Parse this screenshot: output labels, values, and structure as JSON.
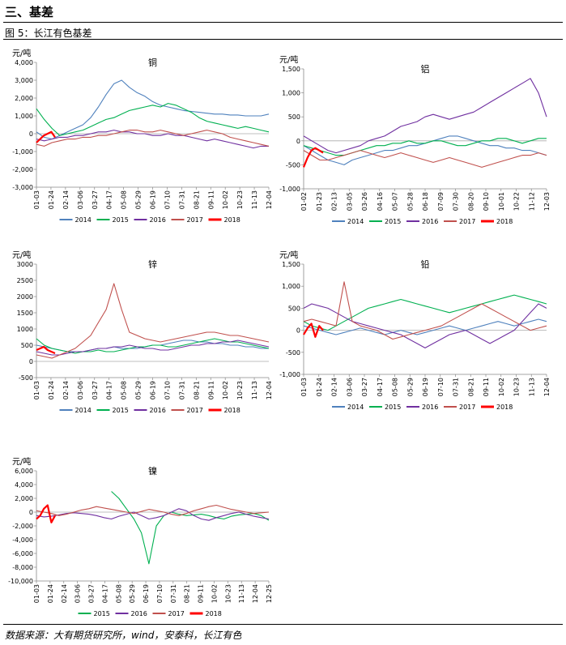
{
  "header": {
    "section_title": "三、基差",
    "figure_caption": "图 5：长江有色基差",
    "source": "数据来源：大有期货研究所，wind，安泰科，长江有色"
  },
  "colors": {
    "2014": "#4f81bd",
    "2015": "#00b050",
    "2016": "#7030a0",
    "2017": "#c0504d",
    "2018": "#ff0000"
  },
  "chart_data": [
    {
      "type": "line",
      "title": "铜",
      "ylabel": "元/吨",
      "ylim": [
        -3000,
        4000
      ],
      "yticks": [
        "-3,000",
        "-2,000",
        "-1,000",
        "0",
        "1,000",
        "2,000",
        "3,000",
        "4,000"
      ],
      "xticks": [
        "01-03",
        "01-24",
        "02-14",
        "03-06",
        "03-27",
        "04-17",
        "05-08",
        "05-29",
        "06-19",
        "07-10",
        "07-31",
        "08-21",
        "09-11",
        "10-02",
        "10-23",
        "11-13",
        "12-04"
      ],
      "series": [
        {
          "name": "2014",
          "color": "#4f81bd",
          "values": [
            100,
            -200,
            -300,
            -100,
            100,
            300,
            500,
            900,
            1500,
            2200,
            2800,
            3000,
            2600,
            2300,
            2100,
            1800,
            1600,
            1500,
            1400,
            1300,
            1250,
            1200,
            1150,
            1100,
            1100,
            1050,
            1050,
            1000,
            1000,
            1000,
            1100
          ]
        },
        {
          "name": "2015",
          "color": "#00b050",
          "values": [
            1400,
            800,
            300,
            -100,
            0,
            100,
            200,
            400,
            600,
            800,
            900,
            1100,
            1300,
            1400,
            1500,
            1600,
            1500,
            1700,
            1600,
            1400,
            1200,
            900,
            700,
            600,
            500,
            400,
            300,
            400,
            300,
            200,
            100
          ]
        },
        {
          "name": "2016",
          "color": "#7030a0",
          "values": [
            -300,
            -400,
            -300,
            -200,
            -200,
            -100,
            -100,
            0,
            100,
            100,
            200,
            100,
            100,
            0,
            0,
            -100,
            -100,
            0,
            -100,
            -100,
            -200,
            -300,
            -400,
            -300,
            -400,
            -500,
            -600,
            -700,
            -800,
            -700,
            -700
          ]
        },
        {
          "name": "2017",
          "color": "#c0504d",
          "values": [
            -600,
            -700,
            -500,
            -400,
            -300,
            -300,
            -200,
            -200,
            -100,
            -100,
            0,
            100,
            200,
            200,
            100,
            100,
            200,
            100,
            0,
            -100,
            0,
            100,
            200,
            100,
            0,
            -200,
            -300,
            -400,
            -500,
            -600,
            -700
          ]
        },
        {
          "name": "2018",
          "color": "#ff0000",
          "values": [
            -500,
            -300,
            -100,
            0,
            100,
            -200
          ]
        }
      ]
    },
    {
      "type": "line",
      "title": "铝",
      "ylabel": "元/吨",
      "ylim": [
        -1000,
        1500
      ],
      "yticks": [
        "-1,000",
        "-500",
        "0",
        "500",
        "1,000",
        "1,500"
      ],
      "xticks": [
        "01-02",
        "01-23",
        "02-13",
        "03-05",
        "03-26",
        "04-16",
        "05-07",
        "05-28",
        "06-18",
        "07-09",
        "07-30",
        "08-20",
        "09-10",
        "10-01",
        "10-22",
        "11-12",
        "12-03"
      ],
      "series": [
        {
          "name": "2014",
          "color": "#4f81bd",
          "values": [
            -100,
            -200,
            -300,
            -400,
            -450,
            -500,
            -400,
            -350,
            -300,
            -250,
            -200,
            -200,
            -150,
            -100,
            -100,
            -50,
            0,
            50,
            100,
            100,
            50,
            0,
            -50,
            -100,
            -100,
            -150,
            -150,
            -200,
            -200,
            -250,
            -300
          ]
        },
        {
          "name": "2015",
          "color": "#00b050",
          "values": [
            -100,
            -150,
            -200,
            -250,
            -300,
            -300,
            -250,
            -200,
            -150,
            -100,
            -100,
            -50,
            -50,
            0,
            -50,
            -50,
            0,
            0,
            -50,
            -100,
            -100,
            -50,
            0,
            0,
            50,
            50,
            0,
            -50,
            0,
            50,
            50
          ]
        },
        {
          "name": "2016",
          "color": "#7030a0",
          "values": [
            100,
            0,
            -100,
            -200,
            -250,
            -200,
            -150,
            -100,
            0,
            50,
            100,
            200,
            300,
            350,
            400,
            500,
            550,
            500,
            450,
            500,
            550,
            600,
            700,
            800,
            900,
            1000,
            1100,
            1200,
            1300,
            1000,
            500
          ]
        },
        {
          "name": "2017",
          "color": "#c0504d",
          "values": [
            -200,
            -300,
            -400,
            -400,
            -350,
            -300,
            -250,
            -200,
            -250,
            -300,
            -350,
            -300,
            -250,
            -300,
            -350,
            -400,
            -450,
            -400,
            -350,
            -400,
            -450,
            -500,
            -550,
            -500,
            -450,
            -400,
            -350,
            -300,
            -300,
            -250,
            -300
          ]
        },
        {
          "name": "2018",
          "color": "#ff0000",
          "values": [
            -550,
            -350,
            -200,
            -150,
            -200,
            -250
          ]
        }
      ]
    },
    {
      "type": "line",
      "title": "锌",
      "ylabel": "元/吨",
      "ylim": [
        -500,
        3000
      ],
      "yticks": [
        "-500",
        "0",
        "500",
        "1000",
        "1500",
        "2000",
        "2500",
        "3000"
      ],
      "xticks": [
        "01-03",
        "01-24",
        "02-14",
        "03-06",
        "03-27",
        "04-17",
        "05-08",
        "05-29",
        "06-19",
        "07-10",
        "07-31",
        "08-21",
        "09-11",
        "10-02",
        "10-23",
        "11-13",
        "12-04"
      ],
      "series": [
        {
          "name": "2014",
          "color": "#4f81bd",
          "values": [
            500,
            450,
            400,
            350,
            300,
            300,
            300,
            350,
            400,
            400,
            450,
            400,
            400,
            400,
            450,
            500,
            500,
            550,
            600,
            650,
            650,
            600,
            600,
            550,
            550,
            500,
            500,
            450,
            450,
            400,
            400
          ]
        },
        {
          "name": "2015",
          "color": "#00b050",
          "values": [
            700,
            500,
            400,
            350,
            300,
            250,
            300,
            300,
            350,
            300,
            300,
            350,
            400,
            450,
            450,
            500,
            500,
            450,
            450,
            500,
            550,
            600,
            650,
            700,
            650,
            600,
            600,
            550,
            500,
            450,
            400
          ]
        },
        {
          "name": "2016",
          "color": "#7030a0",
          "values": [
            300,
            250,
            200,
            200,
            250,
            300,
            300,
            350,
            400,
            400,
            450,
            450,
            500,
            450,
            400,
            400,
            350,
            350,
            400,
            450,
            500,
            500,
            550,
            550,
            600,
            600,
            650,
            600,
            550,
            500,
            450
          ]
        },
        {
          "name": "2017",
          "color": "#c0504d",
          "values": [
            200,
            150,
            100,
            200,
            300,
            400,
            600,
            800,
            1200,
            1600,
            2400,
            1600,
            900,
            800,
            700,
            650,
            600,
            650,
            700,
            750,
            800,
            850,
            900,
            900,
            850,
            800,
            800,
            750,
            700,
            650,
            600
          ]
        },
        {
          "name": "2018",
          "color": "#ff0000",
          "values": [
            350,
            400,
            450,
            350,
            300,
            250
          ]
        }
      ]
    },
    {
      "type": "line",
      "title": "铅",
      "ylabel": "元/吨",
      "ylim": [
        -1000,
        1500
      ],
      "yticks": [
        "-1,000",
        "-500",
        "0",
        "500",
        "1,000",
        "1,500"
      ],
      "xticks": [
        "01-03",
        "01-24",
        "02-14",
        "03-06",
        "03-27",
        "04-17",
        "05-08",
        "05-29",
        "06-19",
        "07-10",
        "07-31",
        "08-21",
        "09-11",
        "10-02",
        "10-23",
        "11-13",
        "12-04"
      ],
      "series": [
        {
          "name": "2014",
          "color": "#4f81bd",
          "values": [
            100,
            50,
            0,
            -50,
            -100,
            -50,
            0,
            50,
            0,
            -50,
            -100,
            -50,
            0,
            -50,
            -100,
            -50,
            0,
            50,
            100,
            50,
            0,
            50,
            100,
            150,
            200,
            150,
            100,
            150,
            200,
            250,
            200
          ]
        },
        {
          "name": "2015",
          "color": "#00b050",
          "values": [
            200,
            100,
            50,
            0,
            100,
            200,
            300,
            400,
            500,
            550,
            600,
            650,
            700,
            650,
            600,
            550,
            500,
            450,
            400,
            450,
            500,
            550,
            600,
            650,
            700,
            750,
            800,
            750,
            700,
            650,
            600
          ]
        },
        {
          "name": "2016",
          "color": "#7030a0",
          "values": [
            500,
            600,
            550,
            500,
            400,
            300,
            200,
            150,
            100,
            50,
            0,
            -50,
            -100,
            -200,
            -300,
            -400,
            -300,
            -200,
            -100,
            -50,
            0,
            -100,
            -200,
            -300,
            -200,
            -100,
            0,
            200,
            400,
            600,
            500
          ]
        },
        {
          "name": "2017",
          "color": "#c0504d",
          "values": [
            200,
            250,
            200,
            150,
            100,
            1100,
            200,
            100,
            50,
            0,
            -100,
            -200,
            -150,
            -100,
            -50,
            0,
            50,
            100,
            200,
            300,
            400,
            500,
            600,
            500,
            400,
            300,
            200,
            100,
            0,
            50,
            100
          ]
        },
        {
          "name": "2018",
          "color": "#ff0000",
          "values": [
            -100,
            50,
            150,
            -150,
            100,
            0
          ]
        }
      ]
    },
    {
      "type": "line",
      "title": "镍",
      "ylabel": "元/吨",
      "ylim": [
        -10000,
        6000
      ],
      "yticks": [
        "-10,000",
        "-8,000",
        "-6,000",
        "-4,000",
        "-2,000",
        "0",
        "2,000",
        "4,000",
        "6,000"
      ],
      "xticks": [
        "01-03",
        "01-24",
        "02-14",
        "03-06",
        "03-27",
        "04-17",
        "05-08",
        "05-29",
        "06-19",
        "07-10",
        "07-31",
        "08-21",
        "09-11",
        "10-02",
        "10-23",
        "11-13",
        "12-04",
        "12-25"
      ],
      "series": [
        {
          "name": "2015",
          "color": "#00b050",
          "values": [
            null,
            null,
            null,
            null,
            null,
            null,
            null,
            null,
            null,
            null,
            3000,
            2000,
            500,
            -1000,
            -3000,
            -7500,
            -2000,
            -500,
            0,
            -300,
            -500,
            -400,
            -300,
            -500,
            -800,
            -1000,
            -600,
            -400,
            -300,
            -200,
            -500,
            -1200
          ]
        },
        {
          "name": "2016",
          "color": "#7030a0",
          "values": [
            -500,
            -700,
            -600,
            -400,
            -200,
            -100,
            -200,
            -300,
            -500,
            -800,
            -1000,
            -600,
            -300,
            0,
            -500,
            -1000,
            -800,
            -500,
            0,
            500,
            200,
            -500,
            -1000,
            -1200,
            -800,
            -500,
            -200,
            0,
            -300,
            -600,
            -800,
            -1000
          ]
        },
        {
          "name": "2017",
          "color": "#c0504d",
          "values": [
            200,
            0,
            -200,
            -500,
            -300,
            0,
            300,
            500,
            800,
            600,
            400,
            200,
            0,
            -200,
            100,
            400,
            200,
            0,
            -300,
            -500,
            -200,
            200,
            500,
            800,
            1000,
            700,
            400,
            200,
            0,
            -200,
            -100,
            0
          ]
        },
        {
          "name": "2018",
          "color": "#ff0000",
          "values": [
            -1000,
            -500,
            500,
            1000,
            -1500,
            -500
          ]
        }
      ]
    }
  ]
}
